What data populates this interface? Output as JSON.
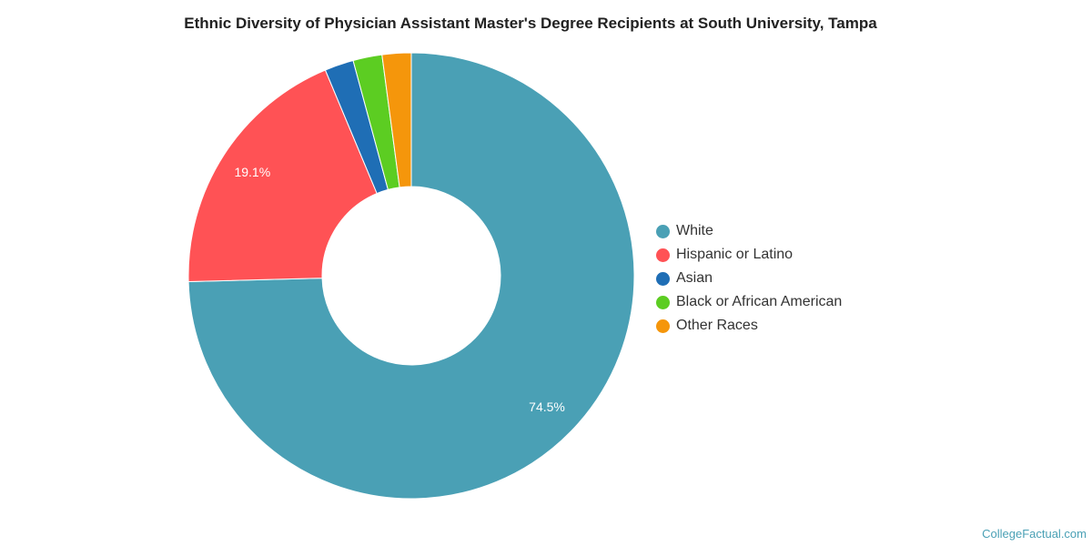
{
  "chart_data": {
    "type": "pie",
    "title": "Ethnic Diversity of Physician Assistant Master's Degree Recipients at South University, Tampa",
    "categories": [
      "White",
      "Hispanic or Latino",
      "Asian",
      "Black or African American",
      "Other Races"
    ],
    "values": [
      74.5,
      19.1,
      2.1,
      2.1,
      2.1
    ],
    "data_labels": [
      "74.5%",
      "19.1%",
      "",
      "",
      ""
    ],
    "colors": [
      "#4aa0b5",
      "#ff5255",
      "#1f6eb5",
      "#5ccd22",
      "#f5960b"
    ],
    "donut": true,
    "legend_position": "right"
  },
  "credit": "CollegeFactual.com"
}
